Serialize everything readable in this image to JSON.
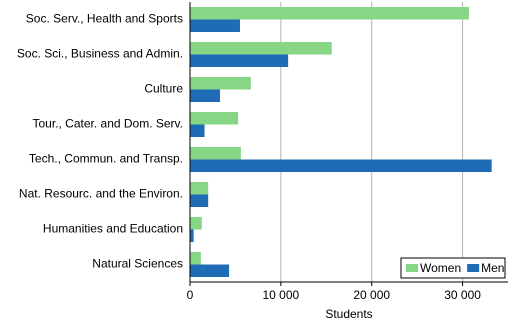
{
  "chart_data": {
    "type": "hbar",
    "categories": [
      "Soc. Serv., Health and Sports",
      "Soc. Sci., Business and Admin.",
      "Culture",
      "Tour., Cater. and Dom. Serv.",
      "Tech., Commun. and Transp.",
      "Nat. Resourc. and the Environ.",
      "Humanities and Education",
      "Natural Sciences"
    ],
    "series": [
      {
        "name": "Women",
        "color": "#86d686",
        "values": [
          30700,
          15600,
          6700,
          5300,
          5600,
          2000,
          1300,
          1200
        ]
      },
      {
        "name": "Men",
        "color": "#1f6bb5",
        "values": [
          5500,
          10800,
          3300,
          1600,
          33200,
          2000,
          400,
          4300
        ]
      }
    ],
    "xlim": [
      0,
      35000
    ],
    "xticks": [
      0,
      {
        "value": 10000,
        "label": "10 000"
      },
      {
        "value": 20000,
        "label": "20 000"
      },
      {
        "value": 30000,
        "label": "30 000"
      }
    ],
    "x_label": "Students",
    "grid": true,
    "legend": "bottom-right"
  }
}
